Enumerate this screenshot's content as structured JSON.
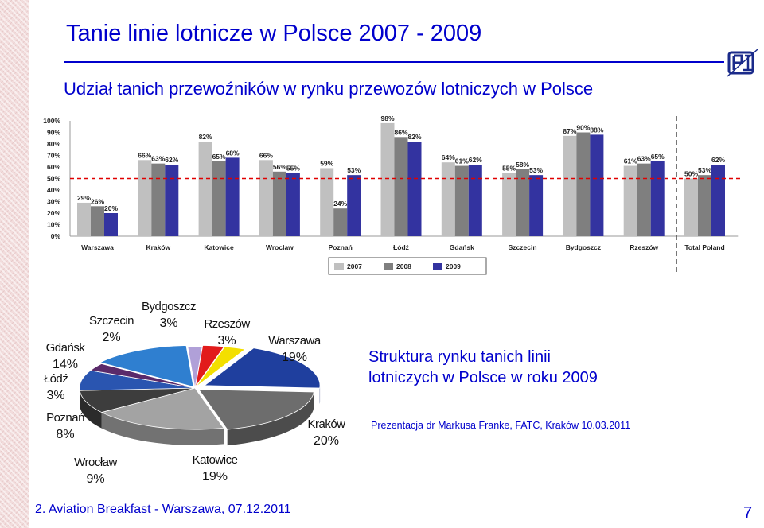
{
  "slide": {
    "title": "Tanie linie lotnicze w Polsce 2007 - 2009",
    "subtitle": "Udział tanich przewoźników w rynku przewozów lotniczych w Polsce",
    "structure_caption": "Struktura rynku tanich linii lotniczych w Polsce w roku 2009",
    "credit": "Prezentacja dr Markusa Franke, FATC, Kraków 10.03.2011",
    "footer": "2. Aviation Breakfast - Warszawa, 07.12.2011",
    "page_number": "7"
  },
  "colors": {
    "accent": "#0000cc",
    "s2007": "#c0c0c0",
    "s2008": "#7f7f7f",
    "s2009": "#3333a0",
    "threshold": "#e00000"
  },
  "chart_data": [
    {
      "type": "bar",
      "categories": [
        "Warszawa",
        "Kraków",
        "Katowice",
        "Wrocław",
        "Poznań",
        "Łódź",
        "Gdańsk",
        "Szczecin",
        "Bydgoszcz",
        "Rzeszów",
        "Total Poland"
      ],
      "series": [
        {
          "name": "2007",
          "values": [
            29,
            66,
            82,
            66,
            59,
            98,
            64,
            55,
            87,
            61,
            50
          ]
        },
        {
          "name": "2008",
          "values": [
            26,
            63,
            65,
            56,
            24,
            86,
            61,
            58,
            90,
            63,
            53
          ]
        },
        {
          "name": "2009",
          "values": [
            20,
            62,
            68,
            55,
            53,
            82,
            62,
            53,
            88,
            65,
            62
          ]
        }
      ],
      "data_labels": [
        [
          "29%",
          "26%",
          "20%"
        ],
        [
          "66%",
          "63%",
          "62%"
        ],
        [
          "82%",
          "65%",
          "68%"
        ],
        [
          "66%",
          "56%",
          "55%"
        ],
        [
          "59%",
          "24%",
          "53%"
        ],
        [
          "98%",
          "86%",
          "82%"
        ],
        [
          "64%",
          "61%",
          "62%"
        ],
        [
          "55%",
          "58%",
          "53%"
        ],
        [
          "87%",
          "90%",
          "88%"
        ],
        [
          "61%",
          "63%",
          "65%"
        ],
        [
          "50%",
          "53%",
          "62%"
        ]
      ],
      "y_ticks": [
        "0%",
        "10%",
        "20%",
        "30%",
        "40%",
        "50%",
        "60%",
        "70%",
        "80%",
        "90%",
        "100%"
      ],
      "ylim": [
        0,
        100
      ],
      "threshold": 50,
      "legend": [
        "2007",
        "2008",
        "2009"
      ],
      "legend_position": "bottom"
    },
    {
      "type": "pie",
      "year": "2009",
      "slices": [
        {
          "label": "Warszawa",
          "value": 19,
          "text": "19%",
          "color": "#1f3f9e"
        },
        {
          "label": "Kraków",
          "value": 20,
          "text": "20%",
          "color": "#6d6d6d"
        },
        {
          "label": "Katowice",
          "value": 19,
          "text": "19%",
          "color": "#a3a3a3"
        },
        {
          "label": "Wrocław",
          "value": 9,
          "text": "9%",
          "color": "#3d3d3d"
        },
        {
          "label": "Poznań",
          "value": 8,
          "text": "8%",
          "color": "#2a55b0"
        },
        {
          "label": "Łódź",
          "value": 3,
          "text": "3%",
          "color": "#5a2a6a"
        },
        {
          "label": "Gdańsk",
          "value": 14,
          "text": "14%",
          "color": "#2f7fd0"
        },
        {
          "label": "Szczecin",
          "value": 2,
          "text": "2%",
          "color": "#b0a0d8"
        },
        {
          "label": "Bydgoszcz",
          "value": 3,
          "text": "3%",
          "color": "#e21b1b"
        },
        {
          "label": "Rzeszów",
          "value": 3,
          "text": "3%",
          "color": "#f3df00"
        }
      ]
    }
  ]
}
